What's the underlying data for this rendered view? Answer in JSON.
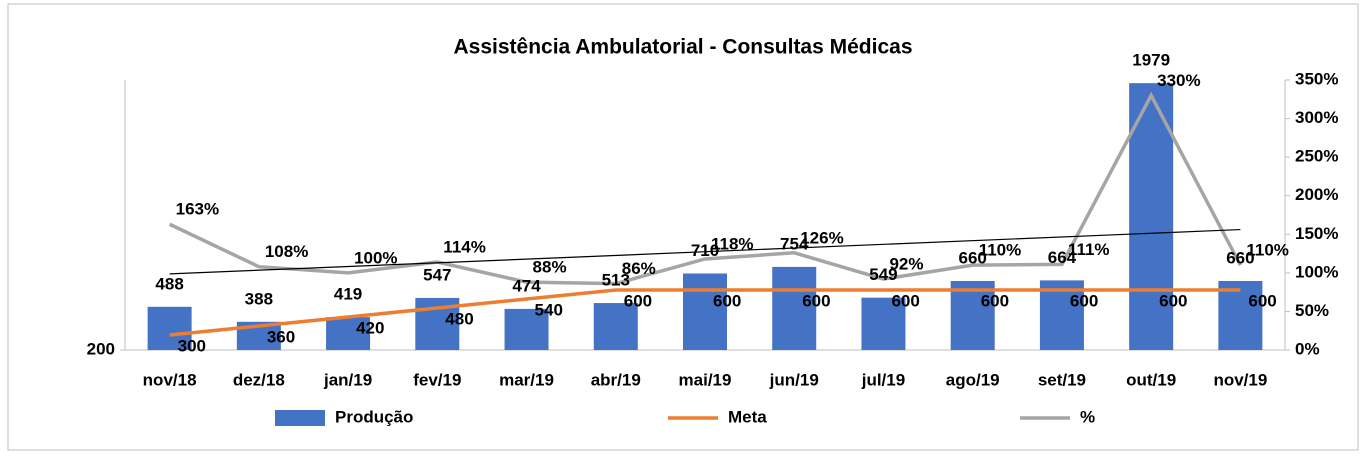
{
  "chart_data": {
    "type": "combo",
    "title": "Assistência Ambulatorial - Consultas Médicas",
    "categories": [
      "nov/18",
      "dez/18",
      "jan/19",
      "fev/19",
      "mar/19",
      "abr/19",
      "mai/19",
      "jun/19",
      "jul/19",
      "ago/19",
      "set/19",
      "out/19",
      "nov/19"
    ],
    "series": [
      {
        "name": "Produção",
        "type": "bar",
        "color": "#4472c4",
        "values": [
          488,
          388,
          419,
          547,
          474,
          513,
          710,
          754,
          549,
          660,
          664,
          1979,
          660
        ]
      },
      {
        "name": "Meta",
        "type": "line",
        "color": "#ed7d31",
        "values": [
          300,
          360,
          420,
          480,
          540,
          600,
          600,
          600,
          600,
          600,
          600,
          600,
          600
        ]
      },
      {
        "name": "%",
        "type": "line",
        "color": "#a5a5a5",
        "axis": "y2",
        "trendline": true,
        "values": [
          163,
          108,
          100,
          114,
          88,
          86,
          118,
          126,
          92,
          110,
          111,
          330,
          110
        ],
        "value_labels": [
          "163%",
          "108%",
          "100%",
          "114%",
          "88%",
          "86%",
          "118%",
          "126%",
          "92%",
          "110%",
          "111%",
          "330%",
          "110%"
        ]
      }
    ],
    "ylim": [
      200,
      2000
    ],
    "yticks": [
      200
    ],
    "y2lim": [
      0,
      350
    ],
    "y2ticks": [
      {
        "value": 0,
        "label": "0%"
      },
      {
        "value": 50,
        "label": "50%"
      },
      {
        "value": 100,
        "label": "100%"
      },
      {
        "value": 150,
        "label": "150%"
      },
      {
        "value": 200,
        "label": "200%"
      },
      {
        "value": 250,
        "label": "250%"
      },
      {
        "value": 300,
        "label": "300%"
      },
      {
        "value": 350,
        "label": "350%"
      }
    ],
    "legend": "bottom"
  }
}
